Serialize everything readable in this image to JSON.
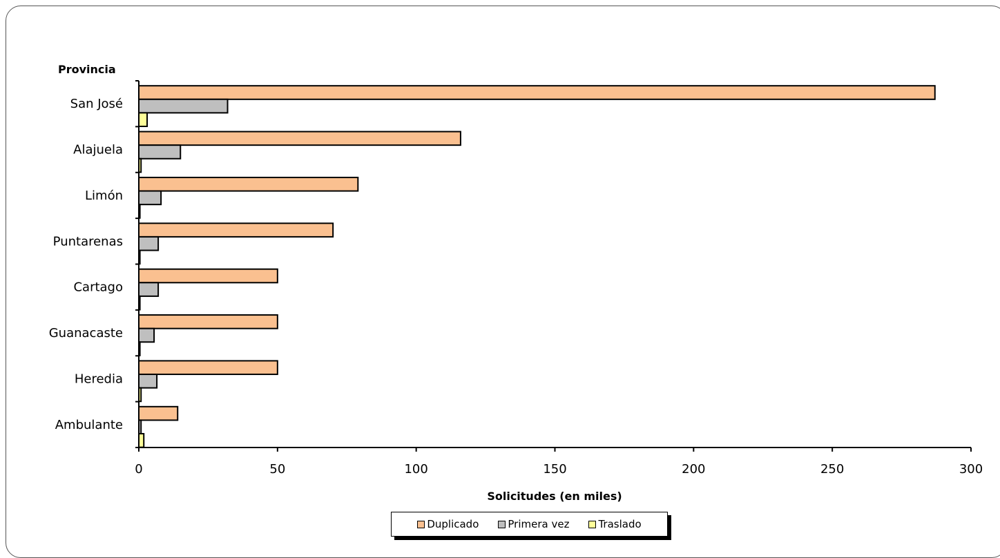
{
  "chart_data": {
    "type": "bar",
    "orientation": "horizontal",
    "y_axis_title": "Provincia",
    "xlabel": "Solicitudes (en miles)",
    "xlim": [
      0,
      300
    ],
    "x_ticks": [
      0,
      50,
      100,
      150,
      200,
      250,
      300
    ],
    "categories": [
      "San José",
      "Alajuela",
      "Limón",
      "Puntarenas",
      "Cartago",
      "Guanacaste",
      "Heredia",
      "Ambulante"
    ],
    "series": [
      {
        "name": "Duplicado",
        "color": "#FAC090",
        "values": [
          287,
          116,
          79,
          70,
          50,
          50,
          50,
          14
        ]
      },
      {
        "name": "Primera vez",
        "color": "#BFBFBF",
        "values": [
          32,
          15,
          8,
          7,
          7,
          5.5,
          6.5,
          0.8
        ]
      },
      {
        "name": "Traslado",
        "color": "#FFFF99",
        "values": [
          3,
          0.8,
          0.4,
          0.4,
          0.4,
          0.4,
          0.8,
          1.8
        ]
      }
    ],
    "legend_position": "bottom",
    "grid": false
  }
}
